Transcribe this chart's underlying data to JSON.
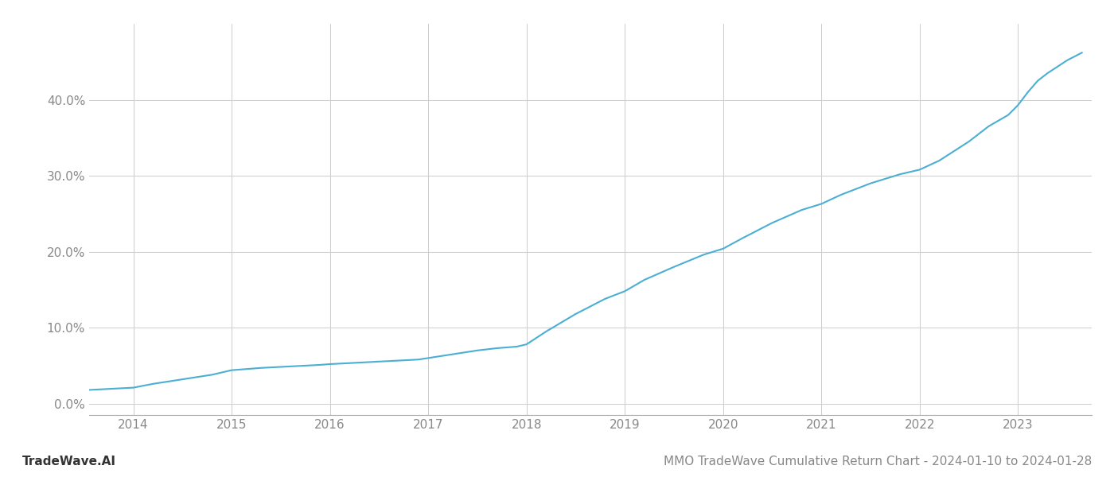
{
  "title": "MMO TradeWave Cumulative Return Chart - 2024-01-10 to 2024-01-28",
  "watermark": "TradeWave.AI",
  "line_color": "#4bafd4",
  "background_color": "#ffffff",
  "grid_color": "#cccccc",
  "x_years": [
    2014,
    2015,
    2016,
    2017,
    2018,
    2019,
    2020,
    2021,
    2022,
    2023
  ],
  "y_ticks": [
    0.0,
    0.1,
    0.2,
    0.3,
    0.4
  ],
  "ylim": [
    -0.015,
    0.5
  ],
  "xlim": [
    2013.55,
    2023.75
  ],
  "data_x": [
    2013.55,
    2014.0,
    2014.2,
    2014.5,
    2014.8,
    2015.0,
    2015.3,
    2015.6,
    2015.9,
    2016.0,
    2016.3,
    2016.6,
    2016.9,
    2017.0,
    2017.1,
    2017.2,
    2017.3,
    2017.5,
    2017.7,
    2017.9,
    2018.0,
    2018.2,
    2018.5,
    2018.8,
    2019.0,
    2019.2,
    2019.5,
    2019.8,
    2020.0,
    2020.2,
    2020.5,
    2020.8,
    2021.0,
    2021.2,
    2021.5,
    2021.8,
    2022.0,
    2022.2,
    2022.5,
    2022.7,
    2022.9,
    2023.0,
    2023.1,
    2023.2,
    2023.3,
    2023.5,
    2023.65
  ],
  "data_y": [
    0.018,
    0.021,
    0.026,
    0.032,
    0.038,
    0.044,
    0.047,
    0.049,
    0.051,
    0.052,
    0.054,
    0.056,
    0.058,
    0.06,
    0.062,
    0.064,
    0.066,
    0.07,
    0.073,
    0.075,
    0.078,
    0.095,
    0.118,
    0.138,
    0.148,
    0.163,
    0.18,
    0.196,
    0.204,
    0.218,
    0.238,
    0.255,
    0.263,
    0.275,
    0.29,
    0.302,
    0.308,
    0.32,
    0.345,
    0.365,
    0.38,
    0.393,
    0.41,
    0.425,
    0.435,
    0.452,
    0.462
  ],
  "tick_label_color": "#888888",
  "title_color": "#888888",
  "watermark_color": "#333333",
  "axis_color": "#aaaaaa",
  "line_width": 1.5,
  "title_fontsize": 11,
  "tick_fontsize": 11,
  "watermark_fontsize": 11
}
